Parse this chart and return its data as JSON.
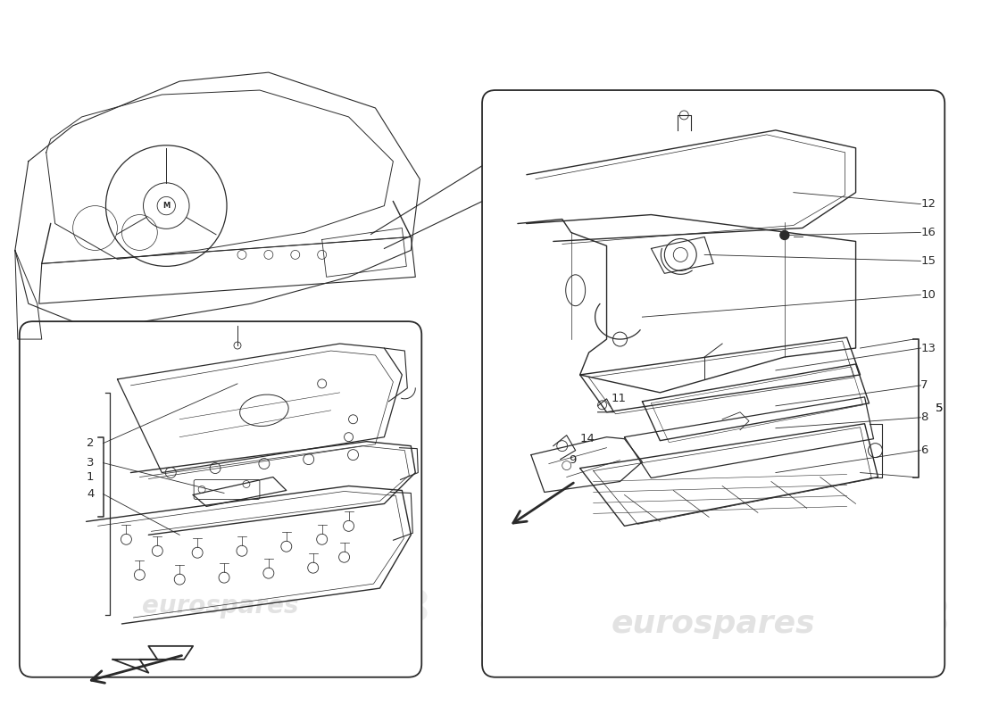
{
  "bg_color": "#ffffff",
  "line_color": "#2a2a2a",
  "watermark_color": "#d0d0d0",
  "watermark_text": "eurospares",
  "fig_w": 11.0,
  "fig_h": 8.0,
  "dpi": 100
}
